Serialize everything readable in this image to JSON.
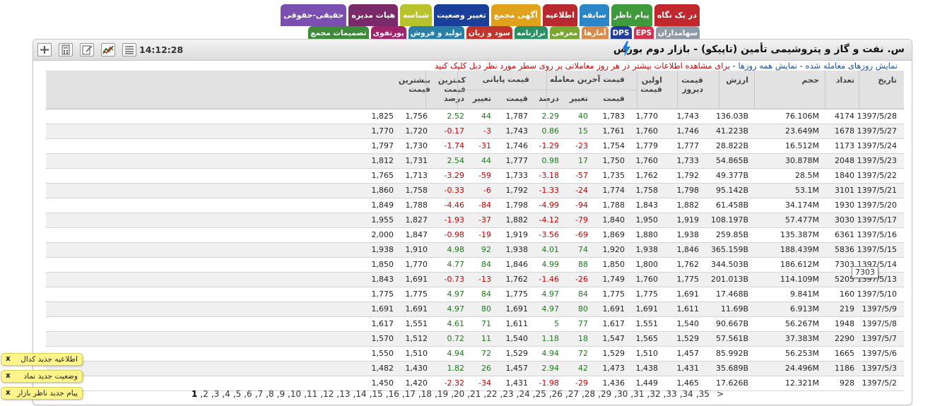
{
  "tabs_row1": [
    {
      "label": "در یک نگاه",
      "color": "#c0282d"
    },
    {
      "label": "پیام ناظر",
      "color": "#3e9a3a"
    },
    {
      "label": "سابقه",
      "color": "#2a86c7"
    },
    {
      "label": "اطلاعیه",
      "color": "#b82a2f"
    },
    {
      "label": "آگهی مجمع",
      "color": "#e0a21c"
    },
    {
      "label": "تغییر وضعیت",
      "color": "#1a3f9a"
    },
    {
      "label": "شناسه",
      "color": "#b8c22c"
    },
    {
      "label": "هیات مدیره",
      "color": "#7a2a6a"
    },
    {
      "label": "حقیقی-حقوقی",
      "color": "#7a4fb0"
    }
  ],
  "tabs_row2": [
    {
      "label": "سهامداران",
      "color": "#8f9aa6"
    },
    {
      "label": "EPS",
      "color": "#d1334f"
    },
    {
      "label": "DPS",
      "color": "#1f3d99"
    },
    {
      "label": "آمارها",
      "color": "#d98c4a"
    },
    {
      "label": "معرفی",
      "color": "#76a832"
    },
    {
      "label": "ترازنامه",
      "color": "#2f8f64"
    },
    {
      "label": "سود و زیان",
      "color": "#c0352b"
    },
    {
      "label": "تولید و فروش",
      "color": "#2a7fa6"
    },
    {
      "label": "پورتفوی",
      "color": "#a0246c"
    },
    {
      "label": "تصمیمات مجمع",
      "color": "#3f8a3a"
    }
  ],
  "header": {
    "title": "س. نفت و گاز و پتروشیمی تأمین (تاپیکو) - بازار دوم بورس",
    "time": "14:12:28"
  },
  "info": {
    "link1": "نمایش روزهای معامله شده",
    "sep1": " - ",
    "link2": "نمایش همه روزها",
    "sep2": " - ",
    "note": "برای مشاهده اطلاعات بیشتر در هر روز معاملاتی بر روی سطر مورد نظر دبل کلیک کنید"
  },
  "columns": {
    "date": "تاریخ",
    "count": "تعداد",
    "volume": "حجم",
    "value": "ارزش",
    "yesterday": "قیمت دیروز",
    "first": "اولین قیمت",
    "last_group": "قیمت آخرین معامله",
    "close_group": "قیمت پایانی",
    "price": "قیمت",
    "change": "تغییر",
    "percent": "درصد",
    "low": "کمترین قیمت",
    "high": "بیشترین قیمت"
  },
  "rows": [
    [
      "1397/5/28",
      "4174",
      "76.106M",
      "136.03B",
      "1,743",
      "1,770",
      "1,783",
      "40",
      "2.29",
      "1,787",
      "44",
      "2.52",
      "1,756",
      "1,825"
    ],
    [
      "1397/5/27",
      "1678",
      "23.649M",
      "41.223B",
      "1,746",
      "1,760",
      "1,761",
      "15",
      "0.86",
      "1,743",
      "-3",
      "-0.17",
      "1,720",
      "1,770"
    ],
    [
      "1397/5/24",
      "1173",
      "16.512M",
      "28.822B",
      "1,777",
      "1,779",
      "1,754",
      "-23",
      "-1.29",
      "1,746",
      "-31",
      "-1.74",
      "1,730",
      "1,797"
    ],
    [
      "1397/5/23",
      "2048",
      "30.878M",
      "54.865B",
      "1,733",
      "1,760",
      "1,750",
      "17",
      "0.98",
      "1,777",
      "44",
      "2.54",
      "1,731",
      "1,812"
    ],
    [
      "1397/5/22",
      "1840",
      "28.5M",
      "49.377B",
      "1,792",
      "1,762",
      "1,735",
      "-57",
      "-3.18",
      "1,733",
      "-59",
      "-3.29",
      "1,713",
      "1,765"
    ],
    [
      "1397/5/21",
      "3101",
      "53.1M",
      "95.142B",
      "1,798",
      "1,758",
      "1,774",
      "-24",
      "-1.33",
      "1,792",
      "-6",
      "-0.33",
      "1,758",
      "1,860"
    ],
    [
      "1397/5/20",
      "1930",
      "34.174M",
      "61.458B",
      "1,882",
      "1,843",
      "1,788",
      "-94",
      "-4.99",
      "1,798",
      "-84",
      "-4.46",
      "1,788",
      "1,849"
    ],
    [
      "1397/5/17",
      "3030",
      "57.477M",
      "108.197B",
      "1,919",
      "1,950",
      "1,840",
      "-79",
      "-4.12",
      "1,882",
      "-37",
      "-1.93",
      "1,827",
      "1,955"
    ],
    [
      "1397/5/16",
      "6361",
      "135.387M",
      "259.85B",
      "1,938",
      "1,880",
      "1,869",
      "-69",
      "-3.56",
      "1,919",
      "-19",
      "-0.98",
      "1,847",
      "2,000"
    ],
    [
      "1397/5/15",
      "5836",
      "188.439M",
      "365.159B",
      "1,846",
      "1,938",
      "1,920",
      "74",
      "4.01",
      "1,938",
      "92",
      "4.98",
      "1,910",
      "1,938"
    ],
    [
      "1397/5/14",
      "7303",
      "186.612M",
      "344.503B",
      "1,762",
      "1,800",
      "1,850",
      "88",
      "4.99",
      "1,846",
      "84",
      "4.77",
      "1,770",
      "1,850"
    ],
    [
      "1397/5/13",
      "5205",
      "114.109M",
      "201.013B",
      "1,775",
      "1,760",
      "1,749",
      "-26",
      "-1.46",
      "1,762",
      "-13",
      "-0.73",
      "1,691",
      "1,843"
    ],
    [
      "1397/5/10",
      "160",
      "9.841M",
      "17.468B",
      "1,691",
      "1,775",
      "1,775",
      "84",
      "4.97",
      "1,775",
      "84",
      "4.97",
      "1,775",
      "1,775"
    ],
    [
      "1397/5/9",
      "219",
      "6.913M",
      "11.69B",
      "1,611",
      "1,691",
      "1,691",
      "80",
      "4.97",
      "1,691",
      "80",
      "4.97",
      "1,691",
      "1,691"
    ],
    [
      "1397/5/8",
      "1948",
      "56.267M",
      "90.667B",
      "1,540",
      "1,551",
      "1,617",
      "77",
      "5",
      "1,611",
      "71",
      "4.61",
      "1,551",
      "1,617"
    ],
    [
      "1397/5/7",
      "2290",
      "37.383M",
      "57.561B",
      "1,529",
      "1,565",
      "1,547",
      "18",
      "1.18",
      "1,540",
      "11",
      "0.72",
      "1,512",
      "1,570"
    ],
    [
      "1397/5/6",
      "1665",
      "56.253M",
      "85.992B",
      "1,457",
      "1,510",
      "1,529",
      "72",
      "4.94",
      "1,529",
      "72",
      "4.94",
      "1,510",
      "1,550"
    ],
    [
      "1397/5/3",
      "1186",
      "24.496M",
      "35.689B",
      "1,431",
      "1,438",
      "1,473",
      "42",
      "2.94",
      "1,457",
      "26",
      "1.82",
      "1,430",
      "1,482"
    ],
    [
      "1397/5/2",
      "928",
      "12.321M",
      "17.626B",
      "1,465",
      "1,449",
      "1,436",
      "-29",
      "-1.98",
      "1,431",
      "-34",
      "-2.32",
      "1,420",
      "1,450"
    ]
  ],
  "tooltip": "7303",
  "pagination": {
    "pages": [
      "1",
      "2",
      "3",
      "4",
      "5",
      "6",
      "7",
      "8",
      "9",
      "10",
      "11",
      "12",
      "13",
      "14",
      "15",
      "16",
      "17",
      "18",
      "19",
      "20",
      "21",
      "22",
      "23",
      "24",
      "25",
      "26",
      "27",
      "28",
      "29",
      "30",
      "31",
      "32",
      "33",
      "34",
      "35"
    ],
    "current": "1",
    "next": ">"
  },
  "notices": [
    {
      "label": "اطلاعیه جدید کدال",
      "close": "x"
    },
    {
      "label": "وضعیت جدید نماد",
      "close": "x"
    },
    {
      "label": "پیام جدید ناظر بازار",
      "close": "x"
    }
  ]
}
